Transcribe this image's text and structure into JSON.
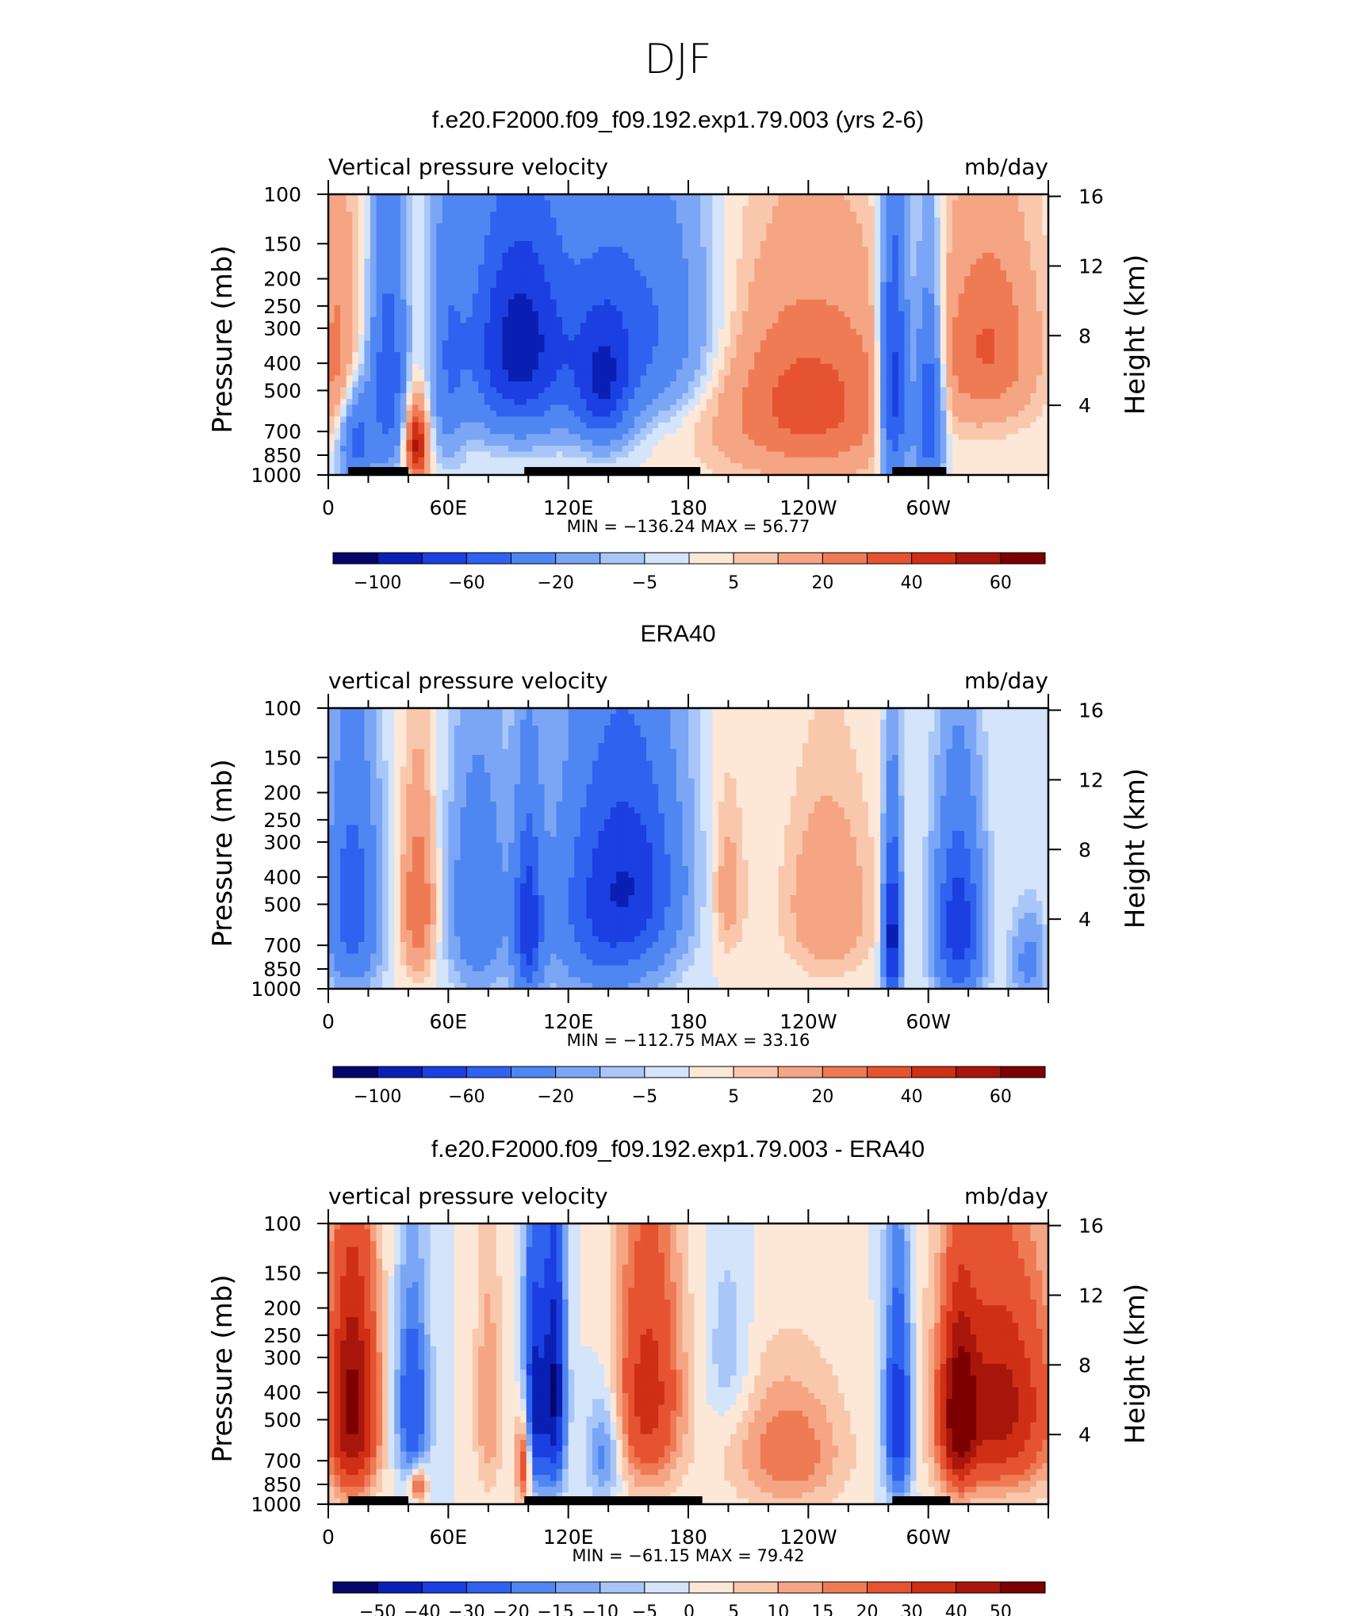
{
  "page_title": "DJF",
  "colors": {
    "ocean_neg": [
      "#04066b",
      "#0a1fb3",
      "#1b3fe0",
      "#2e62ef",
      "#4f86f2",
      "#7aa6f5",
      "#a8c6f8",
      "#d3e4fb"
    ],
    "pos": [
      "#fde8d8",
      "#f9c8ac",
      "#f5a583",
      "#ef7b55",
      "#e65330",
      "#cf2f15",
      "#a8160b",
      "#7d0000"
    ],
    "land_mask": "#000000"
  },
  "chart_data": [
    {
      "type": "heatmap",
      "title": "f.e20.F2000.f09_f09.192.exp1.79.003 (yrs 2-6)",
      "left_label": "Vertical pressure velocity",
      "right_label": "mb/day",
      "ylabel": "Pressure (mb)",
      "ylabel_right": "Height (km)",
      "x_tick_labels": [
        "0",
        "60E",
        "120E",
        "180",
        "120W",
        "60W"
      ],
      "y_tick_labels": [
        "100",
        "150",
        "200",
        "250",
        "300",
        "400",
        "500",
        "700",
        "850",
        "1000"
      ],
      "y_right_tick_labels": [
        "16",
        "12",
        "8",
        "4"
      ],
      "min_max_text": "MIN = −136.24   MAX =   56.77",
      "colorbar_labels": [
        "−100",
        "−60",
        "−20",
        "−5",
        "5",
        "20",
        "40",
        "60"
      ],
      "colorbar_levels": [
        -100,
        -80,
        -60,
        -40,
        -20,
        -10,
        -5,
        0,
        5,
        10,
        20,
        30,
        40,
        50,
        60
      ],
      "min": -136.24,
      "max": 56.77,
      "features": [
        {
          "lon": 95,
          "p": 350,
          "sigma_lon": 18,
          "sigma_p": 220,
          "value": -90
        },
        {
          "lon": 137,
          "p": 500,
          "sigma_lon": 10,
          "sigma_p": 180,
          "value": -60
        },
        {
          "lon": 155,
          "p": 300,
          "sigma_lon": 25,
          "sigma_p": 200,
          "value": -45
        },
        {
          "lon": 30,
          "p": 450,
          "sigma_lon": 6,
          "sigma_p": 300,
          "value": -55
        },
        {
          "lon": 14,
          "p": 750,
          "sigma_lon": 6,
          "sigma_p": 200,
          "value": -50
        },
        {
          "lon": 44,
          "p": 780,
          "sigma_lon": 4,
          "sigma_p": 180,
          "value": 55
        },
        {
          "lon": 5,
          "p": 400,
          "sigma_lon": 8,
          "sigma_p": 250,
          "value": 25
        },
        {
          "lon": 240,
          "p": 550,
          "sigma_lon": 35,
          "sigma_p": 300,
          "value": 35
        },
        {
          "lon": 330,
          "p": 350,
          "sigma_lon": 18,
          "sigma_p": 200,
          "value": 30
        },
        {
          "lon": 283,
          "p": 500,
          "sigma_lon": 5,
          "sigma_p": 350,
          "value": -80
        },
        {
          "lon": 300,
          "p": 600,
          "sigma_lon": 5,
          "sigma_p": 300,
          "value": -70
        },
        {
          "lon": 60,
          "p": 400,
          "sigma_lon": 6,
          "sigma_p": 300,
          "value": -30
        }
      ],
      "land_segments_lon": [
        [
          10,
          40
        ],
        [
          98,
          186
        ],
        [
          282,
          309
        ]
      ]
    },
    {
      "type": "heatmap",
      "title": "ERA40",
      "left_label": "vertical pressure velocity",
      "right_label": "mb/day",
      "ylabel": "Pressure (mb)",
      "ylabel_right": "Height (km)",
      "x_tick_labels": [
        "0",
        "60E",
        "120E",
        "180",
        "120W",
        "60W"
      ],
      "y_tick_labels": [
        "100",
        "150",
        "200",
        "250",
        "300",
        "400",
        "500",
        "700",
        "850",
        "1000"
      ],
      "y_right_tick_labels": [
        "16",
        "12",
        "8",
        "4"
      ],
      "min_max_text": "MIN = −112.75   MAX =   33.16",
      "colorbar_labels": [
        "−100",
        "−60",
        "−20",
        "−5",
        "5",
        "20",
        "40",
        "60"
      ],
      "colorbar_levels": [
        -100,
        -80,
        -60,
        -40,
        -20,
        -10,
        -5,
        0,
        5,
        10,
        20,
        30,
        40,
        50,
        60
      ],
      "min": -112.75,
      "max": 33.16,
      "features": [
        {
          "lon": 12,
          "p": 500,
          "sigma_lon": 9,
          "sigma_p": 300,
          "value": -55
        },
        {
          "lon": 45,
          "p": 500,
          "sigma_lon": 6,
          "sigma_p": 250,
          "value": 30
        },
        {
          "lon": 75,
          "p": 500,
          "sigma_lon": 10,
          "sigma_p": 300,
          "value": -40
        },
        {
          "lon": 100,
          "p": 600,
          "sigma_lon": 5,
          "sigma_p": 300,
          "value": -70
        },
        {
          "lon": 138,
          "p": 500,
          "sigma_lon": 18,
          "sigma_p": 330,
          "value": -60
        },
        {
          "lon": 158,
          "p": 400,
          "sigma_lon": 15,
          "sigma_p": 250,
          "value": -40
        },
        {
          "lon": 200,
          "p": 450,
          "sigma_lon": 6,
          "sigma_p": 200,
          "value": 15
        },
        {
          "lon": 250,
          "p": 500,
          "sigma_lon": 15,
          "sigma_p": 250,
          "value": 20
        },
        {
          "lon": 282,
          "p": 650,
          "sigma_lon": 3,
          "sigma_p": 300,
          "value": -95
        },
        {
          "lon": 315,
          "p": 600,
          "sigma_lon": 8,
          "sigma_p": 300,
          "value": -75
        },
        {
          "lon": 350,
          "p": 800,
          "sigma_lon": 6,
          "sigma_p": 200,
          "value": -25
        }
      ],
      "land_segments_lon": []
    },
    {
      "type": "heatmap",
      "title": "f.e20.F2000.f09_f09.192.exp1.79.003 - ERA40",
      "left_label": "vertical pressure velocity",
      "right_label": "mb/day",
      "ylabel": "Pressure (mb)",
      "ylabel_right": "Height (km)",
      "x_tick_labels": [
        "0",
        "60E",
        "120E",
        "180",
        "120W",
        "60W"
      ],
      "y_tick_labels": [
        "100",
        "150",
        "200",
        "250",
        "300",
        "400",
        "500",
        "700",
        "850",
        "1000"
      ],
      "y_right_tick_labels": [
        "16",
        "12",
        "8",
        "4"
      ],
      "min_max_text": "MIN = −61.15   MAX =   79.42",
      "colorbar_labels": [
        "−50",
        "−40",
        "−30",
        "−20",
        "−15",
        "−10",
        "−5",
        "0",
        "5",
        "10",
        "15",
        "20",
        "30",
        "40",
        "50"
      ],
      "colorbar_levels": [
        -50,
        -40,
        -30,
        -20,
        -15,
        -10,
        -5,
        0,
        5,
        10,
        15,
        20,
        30,
        40,
        50
      ],
      "min": -61.15,
      "max": 79.42,
      "features": [
        {
          "lon": 12,
          "p": 450,
          "sigma_lon": 9,
          "sigma_p": 300,
          "value": 55
        },
        {
          "lon": 42,
          "p": 450,
          "sigma_lon": 6,
          "sigma_p": 250,
          "value": -30
        },
        {
          "lon": 45,
          "p": 850,
          "sigma_lon": 3,
          "sigma_p": 80,
          "value": 30
        },
        {
          "lon": 103,
          "p": 450,
          "sigma_lon": 4,
          "sigma_p": 300,
          "value": -45
        },
        {
          "lon": 113,
          "p": 400,
          "sigma_lon": 4,
          "sigma_p": 300,
          "value": -50
        },
        {
          "lon": 98,
          "p": 700,
          "sigma_lon": 3,
          "sigma_p": 200,
          "value": 35
        },
        {
          "lon": 160,
          "p": 400,
          "sigma_lon": 12,
          "sigma_p": 300,
          "value": 35
        },
        {
          "lon": 80,
          "p": 450,
          "sigma_lon": 5,
          "sigma_p": 300,
          "value": 15
        },
        {
          "lon": 138,
          "p": 650,
          "sigma_lon": 6,
          "sigma_p": 200,
          "value": -20
        },
        {
          "lon": 200,
          "p": 300,
          "sigma_lon": 8,
          "sigma_p": 150,
          "value": -10
        },
        {
          "lon": 230,
          "p": 650,
          "sigma_lon": 20,
          "sigma_p": 250,
          "value": 20
        },
        {
          "lon": 285,
          "p": 500,
          "sigma_lon": 5,
          "sigma_p": 300,
          "value": -40
        },
        {
          "lon": 335,
          "p": 450,
          "sigma_lon": 20,
          "sigma_p": 280,
          "value": 45
        },
        {
          "lon": 315,
          "p": 500,
          "sigma_lon": 6,
          "sigma_p": 250,
          "value": 40
        }
      ],
      "land_segments_lon": [
        [
          10,
          40
        ],
        [
          98,
          187
        ],
        [
          282,
          311
        ]
      ]
    }
  ]
}
